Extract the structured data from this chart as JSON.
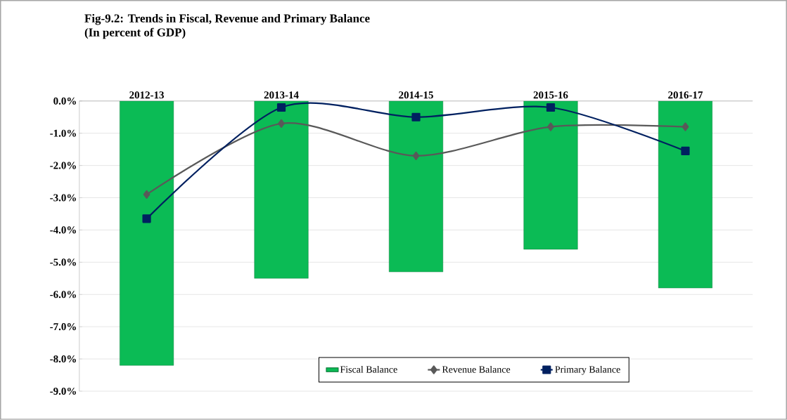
{
  "chart_data": {
    "type": "bar",
    "title": "Fig-9.2: Trends in Fiscal, Revenue and Primary Balance",
    "subtitle": "(In percent of GDP)",
    "categories": [
      "2012-13",
      "2013-14",
      "2014-15",
      "2015-16",
      "2016-17"
    ],
    "series": [
      {
        "name": "Fiscal Balance",
        "color": "#0bbb55",
        "values": [
          -8.2,
          -5.5,
          -5.3,
          -4.6,
          -5.8
        ]
      },
      {
        "name": "Revenue Balance",
        "type": "line",
        "color": "#595959",
        "marker": "diamond",
        "values": [
          -2.9,
          -0.7,
          -1.7,
          -0.8,
          -0.8
        ]
      },
      {
        "name": "Primary Balance",
        "type": "line",
        "color": "#002060",
        "marker": "square",
        "values": [
          -3.65,
          -0.2,
          -0.5,
          -0.2,
          -1.55
        ]
      }
    ],
    "ylim": [
      -9,
      0
    ],
    "yticks": [
      {
        "value": 0,
        "label": "0.0%"
      },
      {
        "value": -1,
        "label": "-1.0%"
      },
      {
        "value": -2,
        "label": "-2.0%"
      },
      {
        "value": -3,
        "label": "-3.0%"
      },
      {
        "value": -4,
        "label": "-4.0%"
      },
      {
        "value": -5,
        "label": "-5.0%"
      },
      {
        "value": -6,
        "label": "-6.0%"
      },
      {
        "value": -7,
        "label": "-7.0%"
      },
      {
        "value": -8,
        "label": "-8.0%"
      },
      {
        "value": -9,
        "label": "-9.0%"
      }
    ],
    "grid": "y",
    "legend": "bottom"
  }
}
